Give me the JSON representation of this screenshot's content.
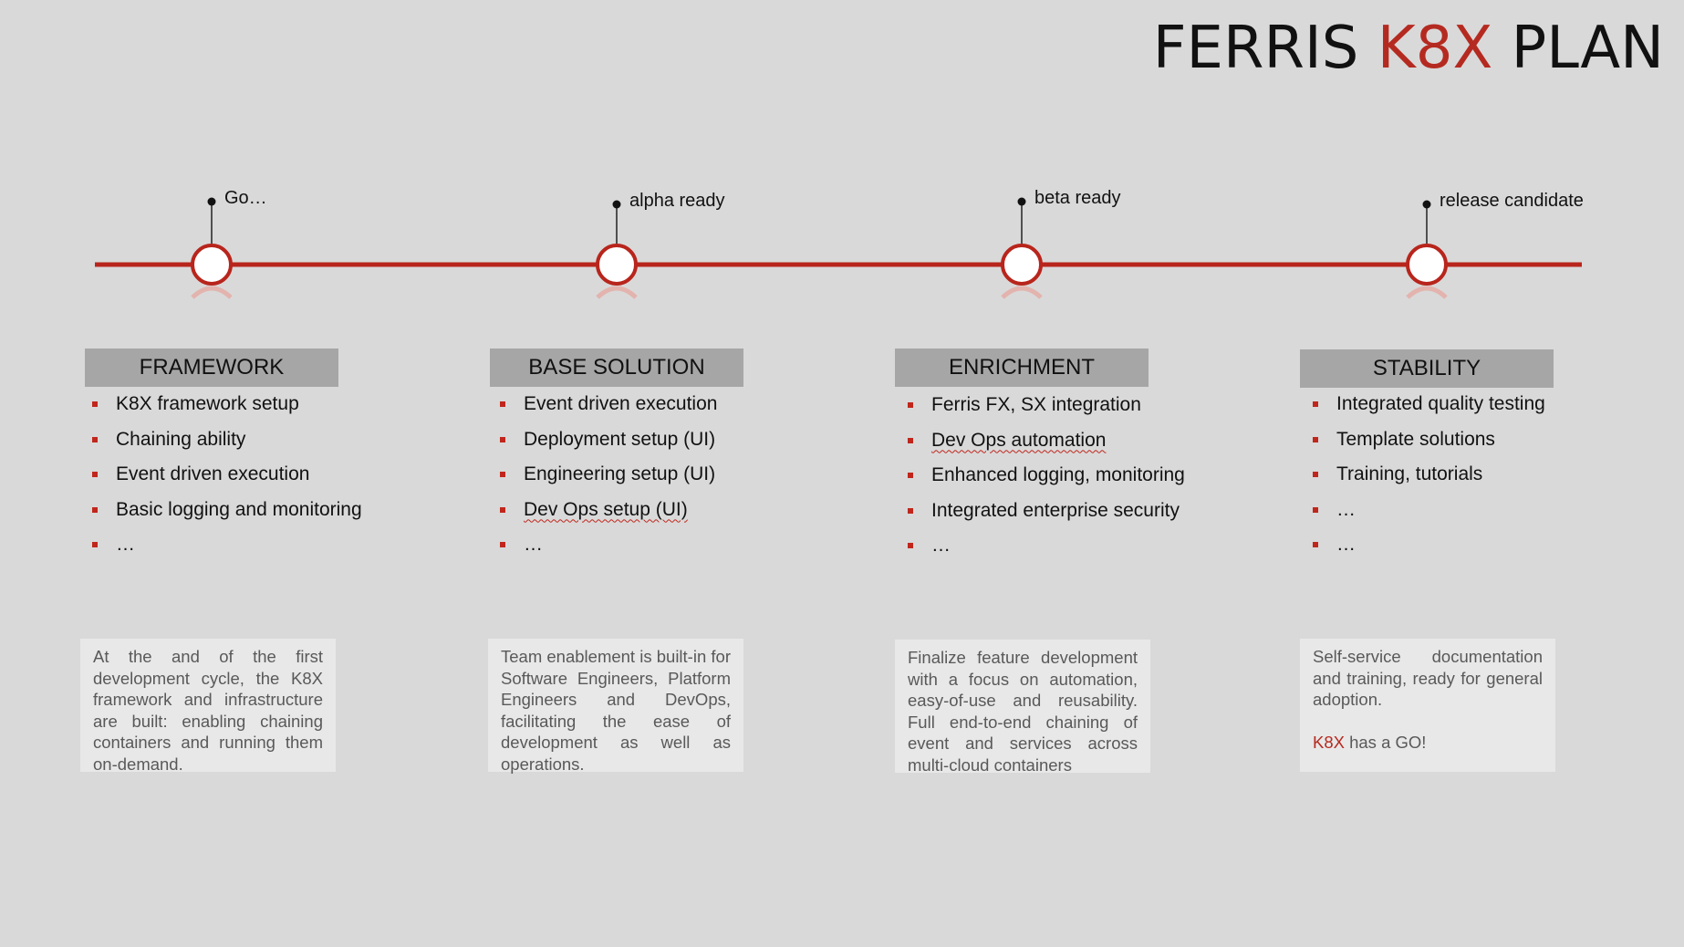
{
  "title": {
    "prefix": "FERRIS",
    "accent": "K8X",
    "suffix": "PLAN"
  },
  "colors": {
    "accent": "#b52a20",
    "timeline": "#b8251c",
    "header_bg": "#a6a6a6",
    "desc_bg": "#e8e8e8",
    "background": "#d9d9d9"
  },
  "milestones": [
    {
      "label": "Go…"
    },
    {
      "label": "alpha ready"
    },
    {
      "label": "beta ready"
    },
    {
      "label": "release candidate"
    }
  ],
  "phases": [
    {
      "header": "FRAMEWORK",
      "bullets": [
        "K8X framework setup",
        "Chaining ability",
        "Event driven execution",
        "Basic logging and monitoring",
        "…"
      ],
      "description": "At the and of the first development cycle, the K8X framework and infrastructure are built: enabling chaining containers and running them on-demand."
    },
    {
      "header": "BASE SOLUTION",
      "bullets": [
        "Event driven execution",
        "Deployment setup (UI)",
        "Engineering setup (UI)",
        "Dev Ops setup (UI)",
        "…"
      ],
      "description": "Team enablement is built-in for Software Engineers, Platform Engineers and DevOps, facilitating the ease of development as well as operations."
    },
    {
      "header": "ENRICHMENT",
      "bullets": [
        "Ferris FX, SX integration",
        "Dev Ops automation",
        "Enhanced logging, monitoring",
        "Integrated enterprise security",
        "…"
      ],
      "description": "Finalize feature development with a focus on automation, easy-of-use and reusability. Full end-to-end chaining of event and services across multi-cloud containers"
    },
    {
      "header": "STABILITY",
      "bullets": [
        "Integrated quality testing",
        "Template solutions",
        "Training, tutorials",
        "…",
        "…"
      ],
      "description": "Self-service documentation and training, ready for general adoption.",
      "go_accent": "K8X",
      "go_text": " has a GO!"
    }
  ]
}
